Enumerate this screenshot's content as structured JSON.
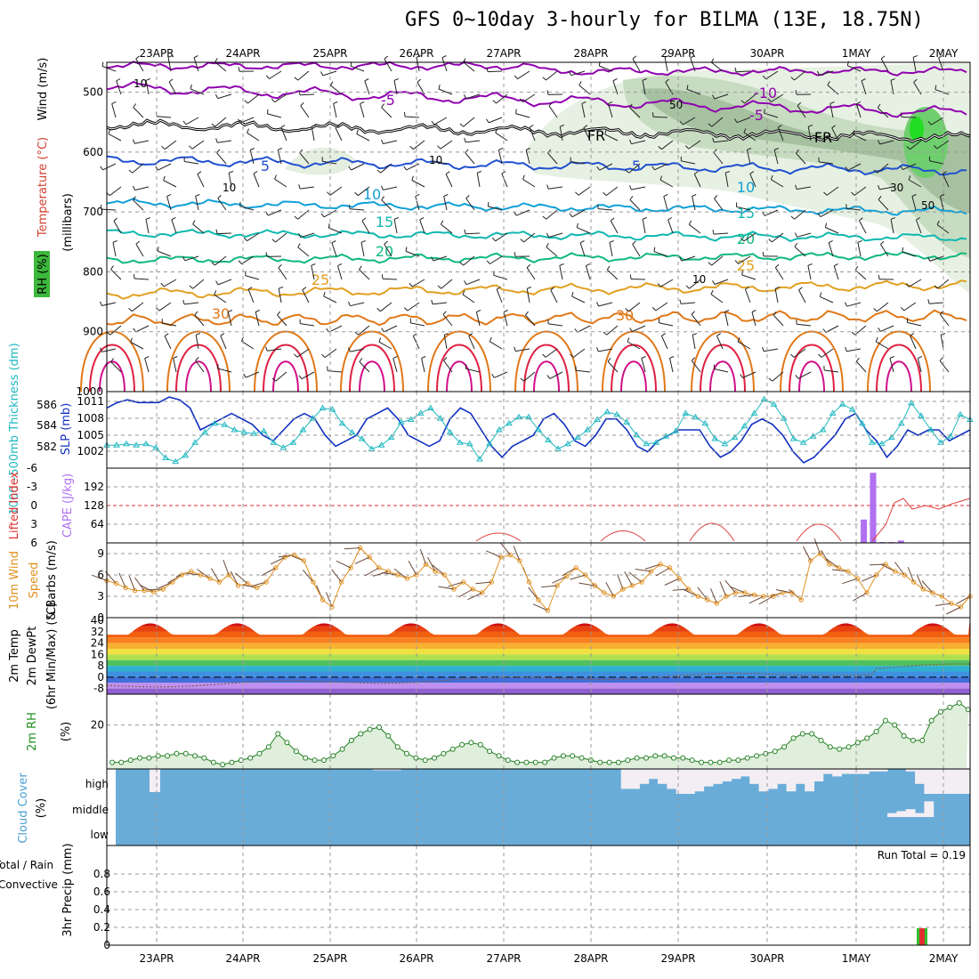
{
  "title": "GFS 0~10day 3-hourly for BILMA (13E, 18.75N)",
  "dates": [
    "23APR",
    "24APR",
    "25APR",
    "26APR",
    "27APR",
    "28APR",
    "29APR",
    "30APR",
    "1MAY",
    "2MAY"
  ],
  "chart_data": [
    {
      "type": "line",
      "panel": "upper-air",
      "ylabel_parts": {
        "rh": "RH (%)",
        "temp": "Temperature (°C)",
        "wind": "Wind (m/s)",
        "units": "(millibars)"
      },
      "yticks": [
        500,
        600,
        700,
        800,
        900,
        1000
      ],
      "ylim": [
        1000,
        450
      ],
      "isotherm_labels": [
        "-10",
        "-5",
        "FR",
        "5",
        "10",
        "15",
        "20",
        "25",
        "30"
      ],
      "rh_labels": [
        "10",
        "30",
        "50"
      ],
      "colors": {
        "minus10": "#9000b0",
        "fr": "#000000",
        "t5": "#2050d0",
        "t10": "#10a0d8",
        "t15": "#10b8b0",
        "t20": "#10b880",
        "t25": "#e0a020",
        "t30": "#e07818",
        "hot": "#e02040"
      }
    },
    {
      "type": "line",
      "panel": "slp-thickness",
      "ylabel_left": "1000~500mb Thickness (dm)",
      "ylabel_right": "SLP (mb)",
      "left_ticks": [
        "586",
        "584",
        "582"
      ],
      "right_ticks": [
        "1011",
        "1008",
        "1005",
        "1002"
      ],
      "series": [
        {
          "name": "SLP",
          "color": "#1030c0",
          "values": [
            1010,
            1011,
            1011.5,
            1011,
            1011,
            1011,
            1012,
            1011.5,
            1010,
            1006,
            1007,
            1008,
            1009,
            1008,
            1007,
            1005,
            1004,
            1006,
            1008,
            1009,
            1008,
            1005,
            1003,
            1004,
            1005,
            1008,
            1009,
            1010,
            1008,
            1005,
            1004,
            1003,
            1004,
            1008,
            1010,
            1009,
            1006,
            1003,
            1001,
            1003,
            1004,
            1005,
            1008,
            1009,
            1007,
            1004,
            1003,
            1005,
            1008,
            1008,
            1006,
            1003,
            1002,
            1004,
            1005,
            1006,
            1006,
            1006,
            1003,
            1001,
            1002,
            1004,
            1007,
            1008,
            1007,
            1005,
            1002,
            1000,
            1001,
            1003,
            1005,
            1008,
            1009,
            1006,
            1004,
            1001,
            1003,
            1006,
            1005,
            1006,
            1006,
            1004,
            1005,
            1006
          ]
        },
        {
          "name": "Thickness",
          "color": "#20b8c0",
          "values": [
            582.8,
            582.8,
            582.9,
            582.8,
            582.9,
            582.6,
            581.8,
            581.5,
            582.0,
            583.0,
            583.8,
            584.5,
            584.4,
            584.0,
            583.8,
            583.7,
            583.9,
            583.0,
            582.6,
            583.0,
            584.0,
            584.9,
            585.7,
            585.6,
            584.5,
            583.8,
            583.3,
            582.5,
            582.8,
            583.4,
            584.6,
            584.8,
            585.3,
            585.7,
            584.9,
            583.8,
            583.0,
            582.9,
            581.7,
            582.9,
            584.0,
            584.5,
            585.0,
            585.0,
            584.0,
            583.2,
            582.5,
            582.9,
            583.4,
            584.0,
            584.8,
            585.4,
            585.2,
            584.6,
            583.6,
            582.9,
            583.0,
            583.5,
            583.9,
            585.3,
            585.0,
            584.5,
            583.3,
            582.9,
            583.4,
            584.3,
            585.3,
            586.4,
            586.0,
            584.9,
            583.3,
            583.0,
            583.5,
            584.0,
            585.3,
            586.0,
            585.6,
            584.5,
            583.0,
            582.9,
            583.4,
            584.5,
            586.1,
            585.1,
            584.0,
            583.0,
            583.5,
            585.2,
            584.8
          ]
        }
      ]
    },
    {
      "type": "bar",
      "panel": "cape-lifted-index",
      "ylabel_left": "Lifted Index",
      "ylabel_right": "CAPE (J/kg)",
      "left_ticks": [
        "-6",
        "-3",
        "0",
        "3",
        "6"
      ],
      "right_ticks": [
        "192",
        "128",
        "64"
      ],
      "cape_bars": [
        {
          "x": 81.5,
          "value": 80
        },
        {
          "x": 82.5,
          "value": 240
        },
        {
          "x": 83.5,
          "value": 3
        },
        {
          "x": 84.5,
          "value": 3
        },
        {
          "x": 85.5,
          "value": 8
        }
      ]
    },
    {
      "type": "line",
      "panel": "wind10m",
      "ylabel_left": "10m Wind",
      "ylabel_mid": "Speed",
      "ylabel_right": "& Barbs (m/s)",
      "yticks": [
        "0",
        "3",
        "6",
        "9"
      ],
      "series": [
        {
          "name": "10m Wind Speed",
          "color": "#e09020",
          "values": [
            5.2,
            4.8,
            4.2,
            3.8,
            3.8,
            3.6,
            4.0,
            5.0,
            6.0,
            6.5,
            6.0,
            5.5,
            5.0,
            6.0,
            4.5,
            4.8,
            4.2,
            5.0,
            7.0,
            8.5,
            8.8,
            8.0,
            5.0,
            2.5,
            1.5,
            5.0,
            7.0,
            9.8,
            8.5,
            7.0,
            6.5,
            6.0,
            5.5,
            6.0,
            7.5,
            6.5,
            6.0,
            4.0,
            5.0,
            4.0,
            3.5,
            5.0,
            8.5,
            8.8,
            8.0,
            5.0,
            2.5,
            1.0,
            4.5,
            5.8,
            7.0,
            6.0,
            4.5,
            3.5,
            3.0,
            4.0,
            4.5,
            5.0,
            6.5,
            7.5,
            7.0,
            5.5,
            4.0,
            3.0,
            2.5,
            2.0,
            3.0,
            3.5,
            3.5,
            3.2,
            3.0,
            3.0,
            3.5,
            3.5,
            2.5,
            8.0,
            9.0,
            7.5,
            7.0,
            6.5,
            5.5,
            3.5,
            6.0,
            7.5,
            6.5,
            6.0,
            5.0,
            4.0,
            3.5,
            3.0,
            2.0,
            1.5,
            3.0
          ]
        }
      ]
    },
    {
      "type": "area",
      "panel": "temp2m",
      "ylabel_left": "2m Temp",
      "ylabel_mid": "2m DewPt",
      "ylabel_right": "(6hr Min/Max) (°C)",
      "yticks": [
        "40",
        "32",
        "24",
        "16",
        "8",
        "0",
        "-8"
      ],
      "ylim": [
        -12,
        42
      ]
    },
    {
      "type": "line",
      "panel": "rh2m",
      "ylabel": "2m RH",
      "yunit": "(%)",
      "yticks": [
        "20"
      ],
      "series": [
        {
          "name": "2m RH",
          "color": "#208020",
          "values": [
            3,
            3,
            4,
            5,
            5,
            6,
            6,
            7,
            7,
            6,
            5,
            3,
            2,
            3,
            4,
            5,
            7,
            10,
            16,
            12,
            8,
            5,
            4,
            4,
            6,
            9,
            13,
            16,
            18,
            19,
            15,
            10,
            7,
            5,
            4,
            5,
            7,
            9,
            11,
            12,
            11,
            8,
            6,
            4,
            3,
            3,
            3,
            3,
            5,
            6,
            6,
            5,
            4,
            3,
            3,
            3,
            4,
            5,
            5,
            6,
            6,
            5,
            5,
            4,
            3,
            3,
            3,
            4,
            4,
            5,
            6,
            7,
            8,
            10,
            14,
            16,
            16,
            13,
            10,
            9,
            10,
            12,
            14,
            17,
            22,
            20,
            15,
            13,
            13,
            22,
            26,
            28,
            30,
            27
          ]
        }
      ]
    },
    {
      "type": "area",
      "panel": "cloud-cover",
      "ylabel": "Cloud Cover",
      "yunit": "(%)",
      "yticks": [
        "high",
        "middle",
        "low"
      ],
      "layers": {
        "high": [
          0,
          0,
          0,
          0,
          0,
          0,
          0,
          0,
          0,
          0,
          0,
          0,
          0,
          0,
          0,
          0,
          0,
          0,
          0,
          0,
          0,
          0,
          0,
          0,
          0,
          0,
          0,
          0,
          5,
          5,
          5,
          0,
          0,
          0,
          0,
          0,
          0,
          0,
          0,
          0,
          0,
          0,
          0,
          0,
          0,
          0,
          0,
          0,
          0,
          0,
          0,
          0,
          0,
          0,
          0,
          80,
          80,
          60,
          40,
          60,
          80,
          100,
          100,
          90,
          70,
          60,
          50,
          40,
          30,
          60,
          90,
          80,
          60,
          90,
          60,
          90,
          50,
          20,
          30,
          20,
          20,
          20,
          10,
          10,
          0,
          0,
          10,
          60,
          100,
          100,
          100,
          100,
          100
        ],
        "middle": [
          0,
          0,
          0,
          0,
          0,
          0,
          0,
          0,
          0,
          0,
          0,
          0,
          0,
          0,
          0,
          0,
          0,
          0,
          0,
          0,
          0,
          0,
          0,
          0,
          0,
          0,
          0,
          0,
          0,
          0,
          0,
          0,
          0,
          0,
          0,
          0,
          0,
          0,
          0,
          0,
          0,
          0,
          0,
          0,
          0,
          0,
          0,
          0,
          0,
          0,
          0,
          0,
          0,
          0,
          0,
          0,
          0,
          0,
          0,
          0,
          0,
          0,
          0,
          0,
          0,
          0,
          0,
          0,
          0,
          0,
          0,
          0,
          0,
          0,
          0,
          0,
          0,
          0,
          0,
          0,
          0,
          0,
          0,
          0,
          20,
          30,
          40,
          20,
          80,
          0,
          0,
          0,
          0
        ]
      }
    },
    {
      "type": "bar",
      "panel": "precip",
      "ylabel_left": "Total / Rain",
      "ylabel_left2": "Convective",
      "ylabel": "3hr Precip (mm)",
      "yticks": [
        "0.8",
        "0.6",
        "0.4",
        "0.2",
        "0"
      ],
      "ylim": [
        0,
        1.0
      ],
      "run_total": "Run Total = 0.19",
      "bars": [
        {
          "x": 84,
          "total": 0.19,
          "convective": 0.19
        }
      ]
    }
  ]
}
